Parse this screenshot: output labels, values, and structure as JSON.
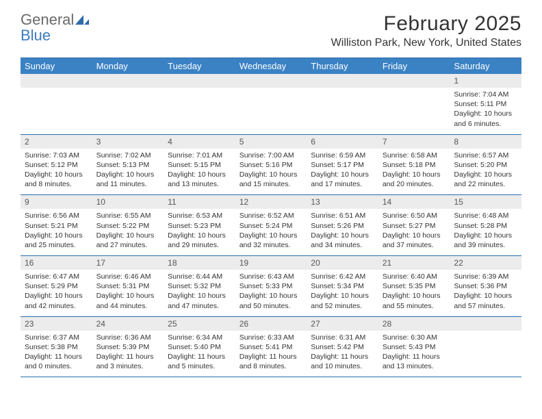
{
  "logo": {
    "text_gray": "General",
    "text_blue": "Blue"
  },
  "title": "February 2025",
  "location": "Williston Park, New York, United States",
  "colors": {
    "header_bg": "#3b82c4",
    "header_border": "#2d6ca8",
    "daynum_bg": "#ececec",
    "text": "#333333",
    "logo_gray": "#6a6a6a",
    "logo_blue": "#3b7bbf"
  },
  "days_of_week": [
    "Sunday",
    "Monday",
    "Tuesday",
    "Wednesday",
    "Thursday",
    "Friday",
    "Saturday"
  ],
  "weeks": [
    [
      null,
      null,
      null,
      null,
      null,
      null,
      {
        "n": "1",
        "sunrise": "7:04 AM",
        "sunset": "5:11 PM",
        "dl_h": "10",
        "dl_m": "6"
      }
    ],
    [
      {
        "n": "2",
        "sunrise": "7:03 AM",
        "sunset": "5:12 PM",
        "dl_h": "10",
        "dl_m": "8"
      },
      {
        "n": "3",
        "sunrise": "7:02 AM",
        "sunset": "5:13 PM",
        "dl_h": "10",
        "dl_m": "11"
      },
      {
        "n": "4",
        "sunrise": "7:01 AM",
        "sunset": "5:15 PM",
        "dl_h": "10",
        "dl_m": "13"
      },
      {
        "n": "5",
        "sunrise": "7:00 AM",
        "sunset": "5:16 PM",
        "dl_h": "10",
        "dl_m": "15"
      },
      {
        "n": "6",
        "sunrise": "6:59 AM",
        "sunset": "5:17 PM",
        "dl_h": "10",
        "dl_m": "17"
      },
      {
        "n": "7",
        "sunrise": "6:58 AM",
        "sunset": "5:18 PM",
        "dl_h": "10",
        "dl_m": "20"
      },
      {
        "n": "8",
        "sunrise": "6:57 AM",
        "sunset": "5:20 PM",
        "dl_h": "10",
        "dl_m": "22"
      }
    ],
    [
      {
        "n": "9",
        "sunrise": "6:56 AM",
        "sunset": "5:21 PM",
        "dl_h": "10",
        "dl_m": "25"
      },
      {
        "n": "10",
        "sunrise": "6:55 AM",
        "sunset": "5:22 PM",
        "dl_h": "10",
        "dl_m": "27"
      },
      {
        "n": "11",
        "sunrise": "6:53 AM",
        "sunset": "5:23 PM",
        "dl_h": "10",
        "dl_m": "29"
      },
      {
        "n": "12",
        "sunrise": "6:52 AM",
        "sunset": "5:24 PM",
        "dl_h": "10",
        "dl_m": "32"
      },
      {
        "n": "13",
        "sunrise": "6:51 AM",
        "sunset": "5:26 PM",
        "dl_h": "10",
        "dl_m": "34"
      },
      {
        "n": "14",
        "sunrise": "6:50 AM",
        "sunset": "5:27 PM",
        "dl_h": "10",
        "dl_m": "37"
      },
      {
        "n": "15",
        "sunrise": "6:48 AM",
        "sunset": "5:28 PM",
        "dl_h": "10",
        "dl_m": "39"
      }
    ],
    [
      {
        "n": "16",
        "sunrise": "6:47 AM",
        "sunset": "5:29 PM",
        "dl_h": "10",
        "dl_m": "42"
      },
      {
        "n": "17",
        "sunrise": "6:46 AM",
        "sunset": "5:31 PM",
        "dl_h": "10",
        "dl_m": "44"
      },
      {
        "n": "18",
        "sunrise": "6:44 AM",
        "sunset": "5:32 PM",
        "dl_h": "10",
        "dl_m": "47"
      },
      {
        "n": "19",
        "sunrise": "6:43 AM",
        "sunset": "5:33 PM",
        "dl_h": "10",
        "dl_m": "50"
      },
      {
        "n": "20",
        "sunrise": "6:42 AM",
        "sunset": "5:34 PM",
        "dl_h": "10",
        "dl_m": "52"
      },
      {
        "n": "21",
        "sunrise": "6:40 AM",
        "sunset": "5:35 PM",
        "dl_h": "10",
        "dl_m": "55"
      },
      {
        "n": "22",
        "sunrise": "6:39 AM",
        "sunset": "5:36 PM",
        "dl_h": "10",
        "dl_m": "57"
      }
    ],
    [
      {
        "n": "23",
        "sunrise": "6:37 AM",
        "sunset": "5:38 PM",
        "dl_h": "11",
        "dl_m": "0"
      },
      {
        "n": "24",
        "sunrise": "6:36 AM",
        "sunset": "5:39 PM",
        "dl_h": "11",
        "dl_m": "3"
      },
      {
        "n": "25",
        "sunrise": "6:34 AM",
        "sunset": "5:40 PM",
        "dl_h": "11",
        "dl_m": "5"
      },
      {
        "n": "26",
        "sunrise": "6:33 AM",
        "sunset": "5:41 PM",
        "dl_h": "11",
        "dl_m": "8"
      },
      {
        "n": "27",
        "sunrise": "6:31 AM",
        "sunset": "5:42 PM",
        "dl_h": "11",
        "dl_m": "10"
      },
      {
        "n": "28",
        "sunrise": "6:30 AM",
        "sunset": "5:43 PM",
        "dl_h": "11",
        "dl_m": "13"
      },
      null
    ]
  ],
  "labels": {
    "sunrise": "Sunrise:",
    "sunset": "Sunset:",
    "daylight": "Daylight:",
    "hours": "hours",
    "and": "and",
    "minutes": "minutes."
  }
}
